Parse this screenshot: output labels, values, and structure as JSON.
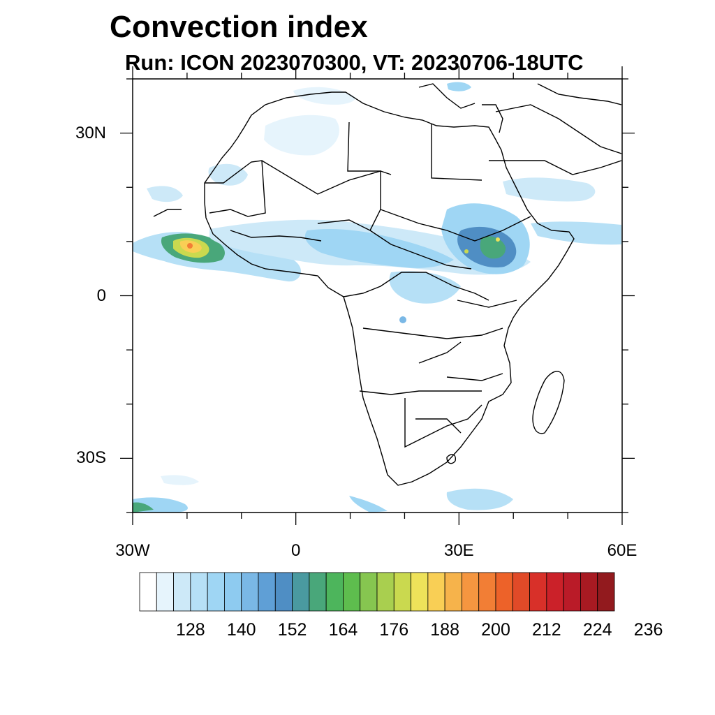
{
  "title": "Convection index",
  "subtitle": "Run: ICON 2023070300,  VT: 20230706-18UTC",
  "axes": {
    "lon_ticks": [
      {
        "value": -30,
        "label": "30W"
      },
      {
        "value": 0,
        "label": "0"
      },
      {
        "value": 30,
        "label": "30E"
      },
      {
        "value": 60,
        "label": "60E"
      }
    ],
    "lat_ticks": [
      {
        "value": 30,
        "label": "30N"
      },
      {
        "value": 0,
        "label": "0"
      },
      {
        "value": -30,
        "label": "30S"
      }
    ],
    "lon_range": [
      -30,
      60
    ],
    "lat_range": [
      -40,
      40
    ]
  },
  "colorbar": {
    "labels": [
      "128",
      "140",
      "152",
      "164",
      "176",
      "188",
      "200",
      "212",
      "224",
      "236"
    ],
    "colors": [
      "#ffffff",
      "#e6f4fc",
      "#cde9f8",
      "#b6e0f6",
      "#9fd6f4",
      "#8ecbf0",
      "#7ab8e6",
      "#5f9fd6",
      "#4f8ec4",
      "#4a9aa0",
      "#49a77a",
      "#4db55c",
      "#5ebd4e",
      "#86c650",
      "#a9cf4f",
      "#cad94f",
      "#eee25a",
      "#f9cf55",
      "#f6b34b",
      "#f59640",
      "#f27e35",
      "#ed6229",
      "#e14a28",
      "#d83029",
      "#cb2129",
      "#ba1b28",
      "#a81a22",
      "#921a1e"
    ]
  },
  "chart_data": {
    "type": "heatmap",
    "title": "Convection index",
    "subtitle": "Run: ICON 2023070300,  VT: 20230706-18UTC",
    "xlim": [
      -30,
      60
    ],
    "ylim": [
      -40,
      40
    ],
    "colorbar_ticks": [
      128,
      140,
      152,
      164,
      176,
      188,
      200,
      212,
      224,
      236
    ]
  }
}
